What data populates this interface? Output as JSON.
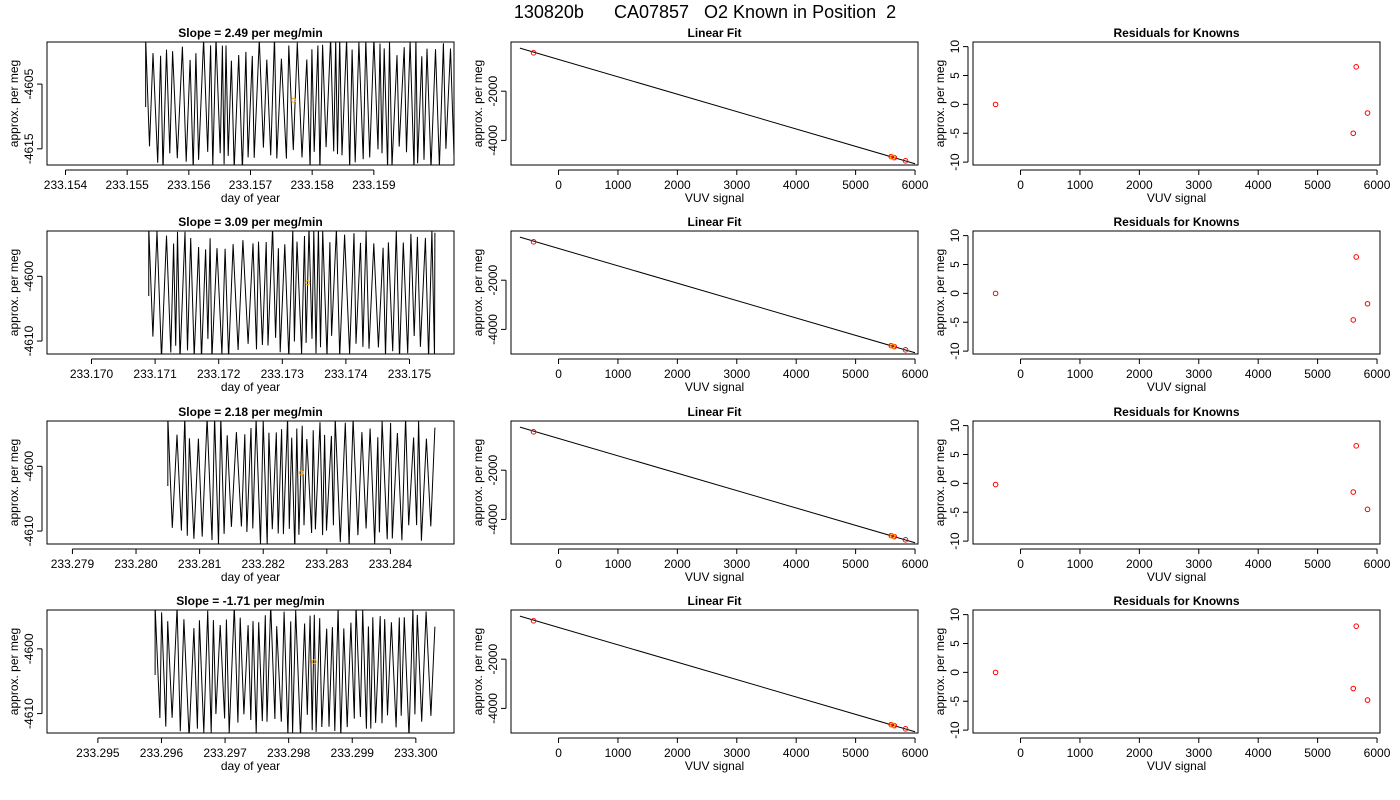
{
  "page": {
    "title": "130820b      CA07857   O2 Known in Position  2"
  },
  "chart_data": [
    {
      "type": "line",
      "panel": "timeseries",
      "title": "Slope =  2.49  per meg/min",
      "xlabel": "day of year",
      "ylabel": "approx. per meg",
      "xlim": [
        233.1537,
        233.1603
      ],
      "ylim": [
        -4617.5,
        -4598.5
      ],
      "xticks": [
        233.154,
        233.155,
        233.156,
        233.157,
        233.158,
        233.159
      ],
      "xtick_labels": [
        "233.154",
        "233.155",
        "233.156",
        "233.157",
        "233.158",
        "233.159"
      ],
      "yticks": [
        -4615,
        -4605
      ],
      "ytick_labels": [
        "-4615",
        "-4605"
      ],
      "data_start": 233.1553,
      "data_end": 233.1603,
      "marker": {
        "x": 233.1577,
        "y": -4607.5
      },
      "colors": {
        "line": "#000000",
        "marker": "#ffa500"
      }
    },
    {
      "type": "scatter",
      "panel": "linear-fit",
      "title": "Linear Fit",
      "xlabel": "VUV signal",
      "ylabel": "approx. per meg",
      "xlim": [
        -800,
        6050
      ],
      "ylim": [
        -5000,
        0
      ],
      "xticks": [
        0,
        1000,
        2000,
        3000,
        4000,
        5000,
        6000
      ],
      "xtick_labels": [
        "0",
        "1000",
        "2000",
        "3000",
        "4000",
        "5000",
        "6000"
      ],
      "yticks": [
        -4000,
        -2000
      ],
      "ytick_labels": [
        "-4000",
        "-2000"
      ],
      "fit_line": {
        "x": [
          -650,
          6000
        ],
        "y": [
          -250,
          -4950
        ]
      },
      "points": [
        {
          "x": -420,
          "y": -440,
          "color": "#ff0000"
        },
        {
          "x": 5600,
          "y": -4660,
          "color": "#ff0000"
        },
        {
          "x": 5650,
          "y": -4700,
          "color": "#ff0000"
        },
        {
          "x": 5840,
          "y": -4830,
          "color": "#ff0000"
        },
        {
          "x": 5620,
          "y": -4680,
          "color": "#ffa500"
        }
      ]
    },
    {
      "type": "scatter",
      "panel": "residuals",
      "title": "Residuals for Knowns",
      "xlabel": "VUV signal",
      "ylabel": "approx. per meg",
      "xlim": [
        -800,
        6050
      ],
      "ylim": [
        -10.5,
        10.8
      ],
      "xticks": [
        0,
        1000,
        2000,
        3000,
        4000,
        5000,
        6000
      ],
      "xtick_labels": [
        "0",
        "1000",
        "2000",
        "3000",
        "4000",
        "5000",
        "6000"
      ],
      "yticks": [
        -10,
        -5,
        0,
        5,
        10
      ],
      "ytick_labels": [
        "-10",
        "-5",
        "0",
        "5",
        "10"
      ],
      "points": [
        {
          "x": -420,
          "y": 0,
          "color": "#ff0000"
        },
        {
          "x": 5650,
          "y": 6.5,
          "color": "#ff0000"
        },
        {
          "x": 5840,
          "y": -1.5,
          "color": "#ff0000"
        },
        {
          "x": 5600,
          "y": -5.0,
          "color": "#ff0000"
        }
      ]
    },
    {
      "type": "line",
      "panel": "timeseries",
      "title": "Slope =  3.09  per meg/min",
      "xlabel": "day of year",
      "ylabel": "approx. per meg",
      "xlim": [
        233.1693,
        233.1757
      ],
      "ylim": [
        -4612,
        -4593
      ],
      "xticks": [
        233.17,
        233.171,
        233.172,
        233.173,
        233.174,
        233.175
      ],
      "xtick_labels": [
        "233.170",
        "233.171",
        "233.172",
        "233.173",
        "233.174",
        "233.175"
      ],
      "yticks": [
        -4610,
        -4600
      ],
      "ytick_labels": [
        "-4610",
        "-4600"
      ],
      "data_start": 233.1709,
      "data_end": 233.1754,
      "marker": {
        "x": 233.1734,
        "y": -4601
      },
      "colors": {
        "line": "#000000",
        "marker": "#ffa500"
      }
    },
    {
      "type": "scatter",
      "panel": "linear-fit",
      "title": "Linear Fit",
      "xlabel": "VUV signal",
      "ylabel": "approx. per meg",
      "xlim": [
        -800,
        6050
      ],
      "ylim": [
        -5000,
        0
      ],
      "xticks": [
        0,
        1000,
        2000,
        3000,
        4000,
        5000,
        6000
      ],
      "xtick_labels": [
        "0",
        "1000",
        "2000",
        "3000",
        "4000",
        "5000",
        "6000"
      ],
      "yticks": [
        -4000,
        -2000
      ],
      "ytick_labels": [
        "-4000",
        "-2000"
      ],
      "fit_line": {
        "x": [
          -650,
          6000
        ],
        "y": [
          -250,
          -4950
        ]
      },
      "points": [
        {
          "x": -420,
          "y": -440,
          "color": "#ff0000"
        },
        {
          "x": 5600,
          "y": -4660,
          "color": "#ff0000"
        },
        {
          "x": 5650,
          "y": -4700,
          "color": "#ff0000"
        },
        {
          "x": 5840,
          "y": -4830,
          "color": "#ff0000"
        },
        {
          "x": 5620,
          "y": -4680,
          "color": "#ffa500"
        }
      ]
    },
    {
      "type": "scatter",
      "panel": "residuals",
      "title": "Residuals for Knowns",
      "xlabel": "VUV signal",
      "ylabel": "approx. per meg",
      "xlim": [
        -800,
        6050
      ],
      "ylim": [
        -10.5,
        10.8
      ],
      "xticks": [
        0,
        1000,
        2000,
        3000,
        4000,
        5000,
        6000
      ],
      "xtick_labels": [
        "0",
        "1000",
        "2000",
        "3000",
        "4000",
        "5000",
        "6000"
      ],
      "yticks": [
        -10,
        -5,
        0,
        5,
        10
      ],
      "ytick_labels": [
        "-10",
        "-5",
        "0",
        "5",
        "10"
      ],
      "points": [
        {
          "x": -420,
          "y": 0,
          "color": "#ff0000"
        },
        {
          "x": 5650,
          "y": 6.3,
          "color": "#ff0000"
        },
        {
          "x": 5840,
          "y": -1.8,
          "color": "#ff0000"
        },
        {
          "x": 5600,
          "y": -4.6,
          "color": "#ff0000"
        }
      ]
    },
    {
      "type": "line",
      "panel": "timeseries",
      "title": "Slope =  2.18  per meg/min",
      "xlabel": "day of year",
      "ylabel": "approx. per meg",
      "xlim": [
        233.2786,
        233.285
      ],
      "ylim": [
        -4612,
        -4593
      ],
      "xticks": [
        233.279,
        233.28,
        233.281,
        233.282,
        233.283,
        233.284
      ],
      "xtick_labels": [
        "233.279",
        "233.280",
        "233.281",
        "233.282",
        "233.283",
        "233.284"
      ],
      "yticks": [
        -4610,
        -4600
      ],
      "ytick_labels": [
        "-4610",
        "-4600"
      ],
      "data_start": 233.2805,
      "data_end": 233.2847,
      "marker": {
        "x": 233.2826,
        "y": -4601
      },
      "colors": {
        "line": "#000000",
        "marker": "#ffa500"
      }
    },
    {
      "type": "scatter",
      "panel": "linear-fit",
      "title": "Linear Fit",
      "xlabel": "VUV signal",
      "ylabel": "approx. per meg",
      "xlim": [
        -800,
        6050
      ],
      "ylim": [
        -5000,
        0
      ],
      "xticks": [
        0,
        1000,
        2000,
        3000,
        4000,
        5000,
        6000
      ],
      "xtick_labels": [
        "0",
        "1000",
        "2000",
        "3000",
        "4000",
        "5000",
        "6000"
      ],
      "yticks": [
        -4000,
        -2000
      ],
      "ytick_labels": [
        "-4000",
        "-2000"
      ],
      "fit_line": {
        "x": [
          -650,
          6000
        ],
        "y": [
          -250,
          -4950
        ]
      },
      "points": [
        {
          "x": -420,
          "y": -440,
          "color": "#ff0000"
        },
        {
          "x": 5600,
          "y": -4660,
          "color": "#ff0000"
        },
        {
          "x": 5650,
          "y": -4700,
          "color": "#ff0000"
        },
        {
          "x": 5840,
          "y": -4830,
          "color": "#ff0000"
        },
        {
          "x": 5620,
          "y": -4680,
          "color": "#ffa500"
        }
      ]
    },
    {
      "type": "scatter",
      "panel": "residuals",
      "title": "Residuals for Knowns",
      "xlabel": "VUV signal",
      "ylabel": "approx. per meg",
      "xlim": [
        -800,
        6050
      ],
      "ylim": [
        -10.5,
        10.8
      ],
      "xticks": [
        0,
        1000,
        2000,
        3000,
        4000,
        5000,
        6000
      ],
      "xtick_labels": [
        "0",
        "1000",
        "2000",
        "3000",
        "4000",
        "5000",
        "6000"
      ],
      "yticks": [
        -10,
        -5,
        0,
        5,
        10
      ],
      "ytick_labels": [
        "-10",
        "-5",
        "0",
        "5",
        "10"
      ],
      "points": [
        {
          "x": -420,
          "y": -0.2,
          "color": "#ff0000"
        },
        {
          "x": 5650,
          "y": 6.5,
          "color": "#ff0000"
        },
        {
          "x": 5600,
          "y": -1.5,
          "color": "#ff0000"
        },
        {
          "x": 5840,
          "y": -4.5,
          "color": "#ff0000"
        }
      ]
    },
    {
      "type": "line",
      "panel": "timeseries",
      "title": "Slope =  -1.71  per meg/min",
      "xlabel": "day of year",
      "ylabel": "approx. per meg",
      "xlim": [
        233.2942,
        233.3006
      ],
      "ylim": [
        -4613,
        -4594
      ],
      "xticks": [
        233.295,
        233.296,
        233.297,
        233.298,
        233.299,
        233.3
      ],
      "xtick_labels": [
        "233.295",
        "233.296",
        "233.297",
        "233.298",
        "233.299",
        "233.300"
      ],
      "yticks": [
        -4610,
        -4600
      ],
      "ytick_labels": [
        "-4610",
        "-4600"
      ],
      "data_start": 233.2959,
      "data_end": 233.3003,
      "marker": {
        "x": 233.2984,
        "y": -4602
      },
      "colors": {
        "line": "#000000",
        "marker": "#ffa500"
      }
    },
    {
      "type": "scatter",
      "panel": "linear-fit",
      "title": "Linear Fit",
      "xlabel": "VUV signal",
      "ylabel": "approx. per meg",
      "xlim": [
        -800,
        6050
      ],
      "ylim": [
        -5000,
        0
      ],
      "xticks": [
        0,
        1000,
        2000,
        3000,
        4000,
        5000,
        6000
      ],
      "xtick_labels": [
        "0",
        "1000",
        "2000",
        "3000",
        "4000",
        "5000",
        "6000"
      ],
      "yticks": [
        -4000,
        -2000
      ],
      "ytick_labels": [
        "-4000",
        "-2000"
      ],
      "fit_line": {
        "x": [
          -650,
          6000
        ],
        "y": [
          -250,
          -4950
        ]
      },
      "points": [
        {
          "x": -420,
          "y": -440,
          "color": "#ff0000"
        },
        {
          "x": 5600,
          "y": -4660,
          "color": "#ff0000"
        },
        {
          "x": 5650,
          "y": -4700,
          "color": "#ff0000"
        },
        {
          "x": 5840,
          "y": -4830,
          "color": "#ff0000"
        },
        {
          "x": 5620,
          "y": -4680,
          "color": "#ffa500"
        }
      ]
    },
    {
      "type": "scatter",
      "panel": "residuals",
      "title": "Residuals for Knowns",
      "xlabel": "VUV signal",
      "ylabel": "approx. per meg",
      "xlim": [
        -800,
        6050
      ],
      "ylim": [
        -10.5,
        10.8
      ],
      "xticks": [
        0,
        1000,
        2000,
        3000,
        4000,
        5000,
        6000
      ],
      "xtick_labels": [
        "0",
        "1000",
        "2000",
        "3000",
        "4000",
        "5000",
        "6000"
      ],
      "yticks": [
        -10,
        -5,
        0,
        5,
        10
      ],
      "ytick_labels": [
        "-10",
        "-5",
        "0",
        "5",
        "10"
      ],
      "points": [
        {
          "x": -420,
          "y": 0,
          "color": "#ff0000"
        },
        {
          "x": 5650,
          "y": 8.0,
          "color": "#ff0000"
        },
        {
          "x": 5600,
          "y": -2.8,
          "color": "#ff0000"
        },
        {
          "x": 5840,
          "y": -4.8,
          "color": "#ff0000"
        }
      ]
    }
  ]
}
